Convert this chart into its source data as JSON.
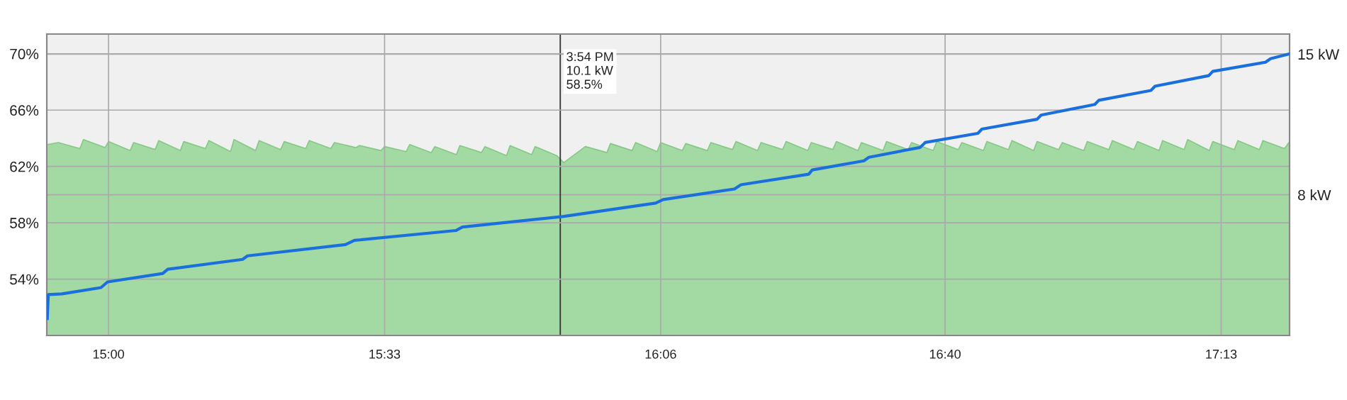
{
  "chart_data": {
    "type": "line",
    "xlim": [
      14.877,
      17.353
    ],
    "xticks": [
      {
        "value": 15.0,
        "label": "15:00"
      },
      {
        "value": 15.55,
        "label": "15:33"
      },
      {
        "value": 16.1,
        "label": "16:06"
      },
      {
        "value": 16.6667,
        "label": "16:40"
      },
      {
        "value": 17.2167,
        "label": "17:13"
      }
    ],
    "ylim": [
      50,
      71.4
    ],
    "yticks": [
      {
        "value": 54,
        "label": "54%"
      },
      {
        "value": 58,
        "label": "58%"
      },
      {
        "value": 62,
        "label": "62%"
      },
      {
        "value": 66,
        "label": "66%"
      },
      {
        "value": 70,
        "label": "70%"
      }
    ],
    "y2lim": [
      1,
      16
    ],
    "y2ticks": [
      {
        "value": 8,
        "label": "8 kW"
      },
      {
        "value": 15,
        "label": "15 kW"
      }
    ],
    "grid": true,
    "legend": false,
    "ref_lines": [
      {
        "axis": "x",
        "value": 15.9,
        "color": "#333333",
        "line_style": "solid"
      }
    ],
    "annotations": [
      "3:54 PM\n10.1 kW\n58.5%"
    ],
    "series": [
      {
        "type": "area",
        "axis": "y2",
        "color": "#a3d9a3",
        "x": [
          14.878,
          14.9,
          14.943,
          14.95,
          14.993,
          15.0,
          15.043,
          15.05,
          15.093,
          15.1,
          15.143,
          15.15,
          15.193,
          15.2,
          15.243,
          15.25,
          15.293,
          15.3,
          15.343,
          15.35,
          15.393,
          15.4,
          15.443,
          15.45,
          15.493,
          15.5,
          15.543,
          15.55,
          15.593,
          15.6,
          15.643,
          15.65,
          15.693,
          15.7,
          15.743,
          15.75,
          15.793,
          15.8,
          15.843,
          15.85,
          15.893,
          15.907,
          15.95,
          15.993,
          16.0,
          16.043,
          16.05,
          16.093,
          16.1,
          16.143,
          16.15,
          16.193,
          16.2,
          16.243,
          16.25,
          16.293,
          16.3,
          16.343,
          16.35,
          16.393,
          16.4,
          16.443,
          16.45,
          16.493,
          16.5,
          16.543,
          16.55,
          16.593,
          16.6,
          16.643,
          16.65,
          16.693,
          16.7,
          16.743,
          16.75,
          16.793,
          16.8,
          16.843,
          16.85,
          16.893,
          16.9,
          16.943,
          16.95,
          16.993,
          17.0,
          17.043,
          17.05,
          17.093,
          17.1,
          17.143,
          17.15,
          17.193,
          17.2,
          17.243,
          17.25,
          17.293,
          17.3,
          17.343,
          17.353
        ],
        "values": [
          10.5,
          10.6,
          10.3,
          10.75,
          10.35,
          10.65,
          10.2,
          10.6,
          10.25,
          10.7,
          10.2,
          10.65,
          10.3,
          10.7,
          10.15,
          10.75,
          10.2,
          10.7,
          10.25,
          10.65,
          10.3,
          10.7,
          10.3,
          10.6,
          10.35,
          10.45,
          10.2,
          10.4,
          10.15,
          10.5,
          10.1,
          10.4,
          10.0,
          10.45,
          10.1,
          10.4,
          9.95,
          10.45,
          10.0,
          10.4,
          9.95,
          9.6,
          10.4,
          10.1,
          10.55,
          10.2,
          10.6,
          10.15,
          10.6,
          10.2,
          10.55,
          10.2,
          10.6,
          10.25,
          10.65,
          10.2,
          10.6,
          10.25,
          10.65,
          10.2,
          10.6,
          10.25,
          10.65,
          10.2,
          10.6,
          10.2,
          10.65,
          10.25,
          10.6,
          10.2,
          10.65,
          10.25,
          10.6,
          10.2,
          10.65,
          10.25,
          10.7,
          10.2,
          10.65,
          10.25,
          10.6,
          10.2,
          10.65,
          10.25,
          10.7,
          10.25,
          10.65,
          10.2,
          10.7,
          10.25,
          10.75,
          10.2,
          10.65,
          10.25,
          10.7,
          10.25,
          10.7,
          10.3,
          10.65
        ]
      },
      {
        "axis": "y",
        "color": "#1a6fdf",
        "x": [
          14.878,
          14.88,
          14.907,
          14.985,
          14.998,
          15.108,
          15.118,
          15.267,
          15.277,
          15.472,
          15.49,
          15.692,
          15.705,
          15.907,
          16.09,
          16.105,
          16.247,
          16.26,
          16.395,
          16.402,
          16.505,
          16.515,
          16.617,
          16.627,
          16.732,
          16.74,
          16.85,
          16.858,
          16.965,
          16.973,
          17.077,
          17.085,
          17.192,
          17.2,
          17.305,
          17.315,
          17.353
        ],
        "values": [
          51.2,
          52.9,
          52.95,
          53.4,
          53.8,
          54.4,
          54.7,
          55.4,
          55.65,
          56.45,
          56.75,
          57.45,
          57.7,
          58.45,
          59.4,
          59.65,
          60.4,
          60.7,
          61.45,
          61.75,
          62.4,
          62.65,
          63.35,
          63.7,
          64.35,
          64.65,
          65.35,
          65.65,
          66.4,
          66.7,
          67.4,
          67.7,
          68.45,
          68.75,
          69.4,
          69.65,
          70.0
        ]
      }
    ]
  }
}
